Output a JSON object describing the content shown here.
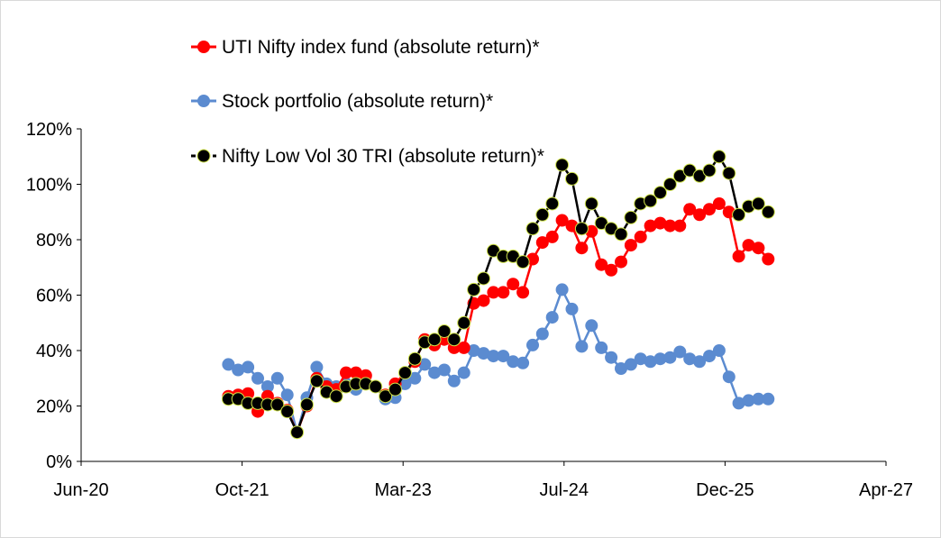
{
  "chart_data": {
    "type": "line",
    "title": "",
    "xlabel": "",
    "ylabel": "",
    "x_ticks": [
      "Jun-20",
      "Oct-21",
      "Mar-23",
      "Jul-24",
      "Dec-25",
      "Apr-27"
    ],
    "x_range": [
      "2020-06",
      "2027-04"
    ],
    "y_ticks": [
      "0%",
      "20%",
      "40%",
      "60%",
      "80%",
      "100%",
      "120%"
    ],
    "ylim": [
      0,
      120
    ],
    "grid": false,
    "legend_position": "top",
    "x": [
      "2021-09",
      "2021-10",
      "2021-11",
      "2021-12",
      "2022-01",
      "2022-02",
      "2022-03",
      "2022-04",
      "2022-05",
      "2022-06",
      "2022-07",
      "2022-08",
      "2022-09",
      "2022-10",
      "2022-11",
      "2022-12",
      "2023-01",
      "2023-02",
      "2023-03",
      "2023-04",
      "2023-05",
      "2023-06",
      "2023-07",
      "2023-08",
      "2023-09",
      "2023-10",
      "2023-11",
      "2023-12",
      "2024-01",
      "2024-02",
      "2024-03",
      "2024-04",
      "2024-05",
      "2024-06",
      "2024-07",
      "2024-08",
      "2024-09",
      "2024-10",
      "2024-11",
      "2024-12",
      "2025-01",
      "2025-02",
      "2025-03",
      "2025-04",
      "2025-05",
      "2025-06",
      "2025-07",
      "2025-08",
      "2025-09",
      "2025-10",
      "2025-11",
      "2025-12",
      "2026-01",
      "2026-02",
      "2026-03",
      "2026-04"
    ],
    "series": [
      {
        "name": "UTI Nifty index fund (absolute return)*",
        "color": "#ff0000",
        "line_color": "#ff0000",
        "values": [
          23.5,
          24,
          24.5,
          18,
          23.5,
          21,
          18.5,
          10.5,
          20,
          30,
          27,
          26,
          32,
          32,
          31,
          27,
          24,
          28,
          32,
          36,
          44,
          42,
          44,
          41,
          41,
          57,
          58,
          61,
          61,
          64,
          61,
          73,
          79,
          81,
          87,
          85,
          77,
          83,
          71,
          69,
          72,
          78,
          81,
          85,
          86,
          85,
          85,
          91,
          89,
          91,
          93,
          90,
          74,
          78,
          77,
          73
        ]
      },
      {
        "name": "Stock portfolio (absolute return)*",
        "color": "#5b8bd0",
        "line_color": "#5b8bd0",
        "values": [
          35,
          33,
          34,
          30,
          27,
          30,
          24,
          10.5,
          23,
          34,
          28,
          27,
          28,
          26,
          28,
          27,
          22.5,
          23,
          28,
          30,
          35,
          32,
          33,
          29,
          32,
          40,
          39,
          38,
          38,
          36,
          35.5,
          42,
          46,
          52,
          62,
          55,
          41.5,
          49,
          41,
          37.5,
          33.5,
          35,
          37,
          36,
          37,
          37.5,
          39.5,
          37,
          36,
          38,
          40,
          30.5,
          21,
          22,
          22.5,
          22.5
        ]
      },
      {
        "name": "Nifty Low Vol 30 TRI (absolute return)*",
        "color": "#000000",
        "line_color": "#000000",
        "values": [
          22.5,
          22.5,
          21,
          21,
          20.5,
          20.5,
          18,
          10.5,
          20.5,
          29,
          25,
          23.5,
          27,
          28,
          28,
          27,
          23.5,
          26,
          32,
          37,
          43,
          44,
          47,
          44,
          50,
          62,
          66,
          76,
          74,
          74,
          72,
          84,
          89,
          93,
          107,
          102,
          84,
          93,
          86,
          84,
          82,
          88,
          93,
          94,
          97,
          100,
          103,
          105,
          103,
          105,
          110,
          104,
          89,
          92,
          93,
          90
        ]
      }
    ]
  },
  "legend": [
    {
      "label": "UTI Nifty index fund (absolute return)*",
      "marker_color": "#ff0000",
      "line_color": "#ff0000"
    },
    {
      "label": "Stock portfolio (absolute return)*",
      "marker_color": "#5b8bd0",
      "line_color": "#5b8bd0"
    },
    {
      "label": "Nifty Low Vol 30 TRI (absolute return)*",
      "marker_color": "#000000",
      "line_color": "#000000"
    }
  ],
  "colors": {
    "axis": "#000000",
    "frame": "#d9d9d9",
    "marker_outline": "#cfe34a"
  }
}
